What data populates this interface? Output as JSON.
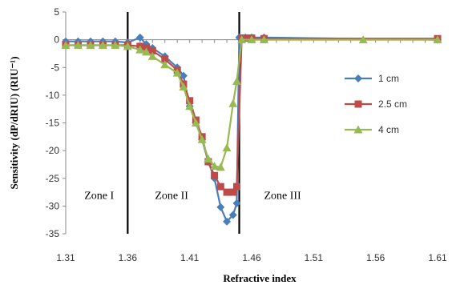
{
  "chart_data": {
    "type": "line",
    "xlabel": "Refractive index",
    "ylabel": "Sensitivity (dP/dRIU) (RIU⁻¹)",
    "xlim": [
      1.31,
      1.61
    ],
    "ylim": [
      -35,
      5
    ],
    "x_ticks": [
      "1.31",
      "1.36",
      "1.41",
      "1.46",
      "1.51",
      "1.56",
      "1.61"
    ],
    "y_ticks": [
      "5",
      "0",
      "-5",
      "-10",
      "-15",
      "-20",
      "-25",
      "-30",
      "-35"
    ],
    "legend_position": "right",
    "grid": false,
    "zone_boundaries": [
      1.36,
      1.45
    ],
    "zones": [
      {
        "label": "Zone I",
        "x": 1.325,
        "y": -28
      },
      {
        "label": "Zone II",
        "x": 1.382,
        "y": -28
      },
      {
        "label": "Zone III",
        "x": 1.47,
        "y": -28
      }
    ],
    "series": [
      {
        "name": "1 cm",
        "color": "#4a7ebb",
        "marker": "diamond",
        "points": [
          [
            1.31,
            -0.3
          ],
          [
            1.32,
            -0.3
          ],
          [
            1.33,
            -0.3
          ],
          [
            1.34,
            -0.3
          ],
          [
            1.35,
            -0.3
          ],
          [
            1.36,
            -0.5
          ],
          [
            1.37,
            0.4
          ],
          [
            1.375,
            -0.8
          ],
          [
            1.38,
            -1.5
          ],
          [
            1.39,
            -3.0
          ],
          [
            1.4,
            -5.0
          ],
          [
            1.405,
            -6.5
          ],
          [
            1.41,
            -12.0
          ],
          [
            1.415,
            -15.0
          ],
          [
            1.42,
            -18.0
          ],
          [
            1.425,
            -22.0
          ],
          [
            1.43,
            -25.0
          ],
          [
            1.435,
            -30.2
          ],
          [
            1.44,
            -32.8
          ],
          [
            1.445,
            -31.6
          ],
          [
            1.448,
            -29.5
          ],
          [
            1.45,
            0.4
          ],
          [
            1.455,
            0.4
          ],
          [
            1.46,
            0.4
          ],
          [
            1.47,
            0.4
          ],
          [
            1.61,
            0.0
          ]
        ]
      },
      {
        "name": "2.5 cm",
        "color": "#be4b48",
        "marker": "square",
        "points": [
          [
            1.31,
            -1.0
          ],
          [
            1.32,
            -1.0
          ],
          [
            1.33,
            -1.0
          ],
          [
            1.34,
            -1.0
          ],
          [
            1.35,
            -1.0
          ],
          [
            1.36,
            -1.0
          ],
          [
            1.37,
            -1.2
          ],
          [
            1.375,
            -1.5
          ],
          [
            1.38,
            -2.0
          ],
          [
            1.39,
            -3.5
          ],
          [
            1.4,
            -5.5
          ],
          [
            1.405,
            -8.0
          ],
          [
            1.41,
            -11.0
          ],
          [
            1.415,
            -14.5
          ],
          [
            1.42,
            -17.5
          ],
          [
            1.425,
            -22.0
          ],
          [
            1.43,
            -24.5
          ],
          [
            1.435,
            -26.5
          ],
          [
            1.44,
            -27.5
          ],
          [
            1.445,
            -27.5
          ],
          [
            1.448,
            -26.5
          ],
          [
            1.452,
            0.3
          ],
          [
            1.455,
            0.3
          ],
          [
            1.46,
            0.3
          ],
          [
            1.47,
            0.2
          ],
          [
            1.61,
            0.2
          ]
        ]
      },
      {
        "name": "4 cm",
        "color": "#98b954",
        "marker": "triangle",
        "points": [
          [
            1.31,
            -1.0
          ],
          [
            1.32,
            -1.0
          ],
          [
            1.33,
            -1.0
          ],
          [
            1.34,
            -1.0
          ],
          [
            1.35,
            -1.0
          ],
          [
            1.36,
            -1.2
          ],
          [
            1.37,
            -1.8
          ],
          [
            1.375,
            -2.2
          ],
          [
            1.38,
            -3.0
          ],
          [
            1.39,
            -4.5
          ],
          [
            1.4,
            -6.0
          ],
          [
            1.405,
            -8.5
          ],
          [
            1.41,
            -12.0
          ],
          [
            1.415,
            -15.0
          ],
          [
            1.42,
            -18.0
          ],
          [
            1.425,
            -21.5
          ],
          [
            1.43,
            -22.8
          ],
          [
            1.435,
            -23.0
          ],
          [
            1.44,
            -19.5
          ],
          [
            1.445,
            -11.5
          ],
          [
            1.448,
            -7.5
          ],
          [
            1.452,
            0.0
          ],
          [
            1.46,
            0.0
          ],
          [
            1.47,
            0.0
          ],
          [
            1.55,
            0.0
          ],
          [
            1.61,
            0.0
          ]
        ]
      }
    ]
  }
}
